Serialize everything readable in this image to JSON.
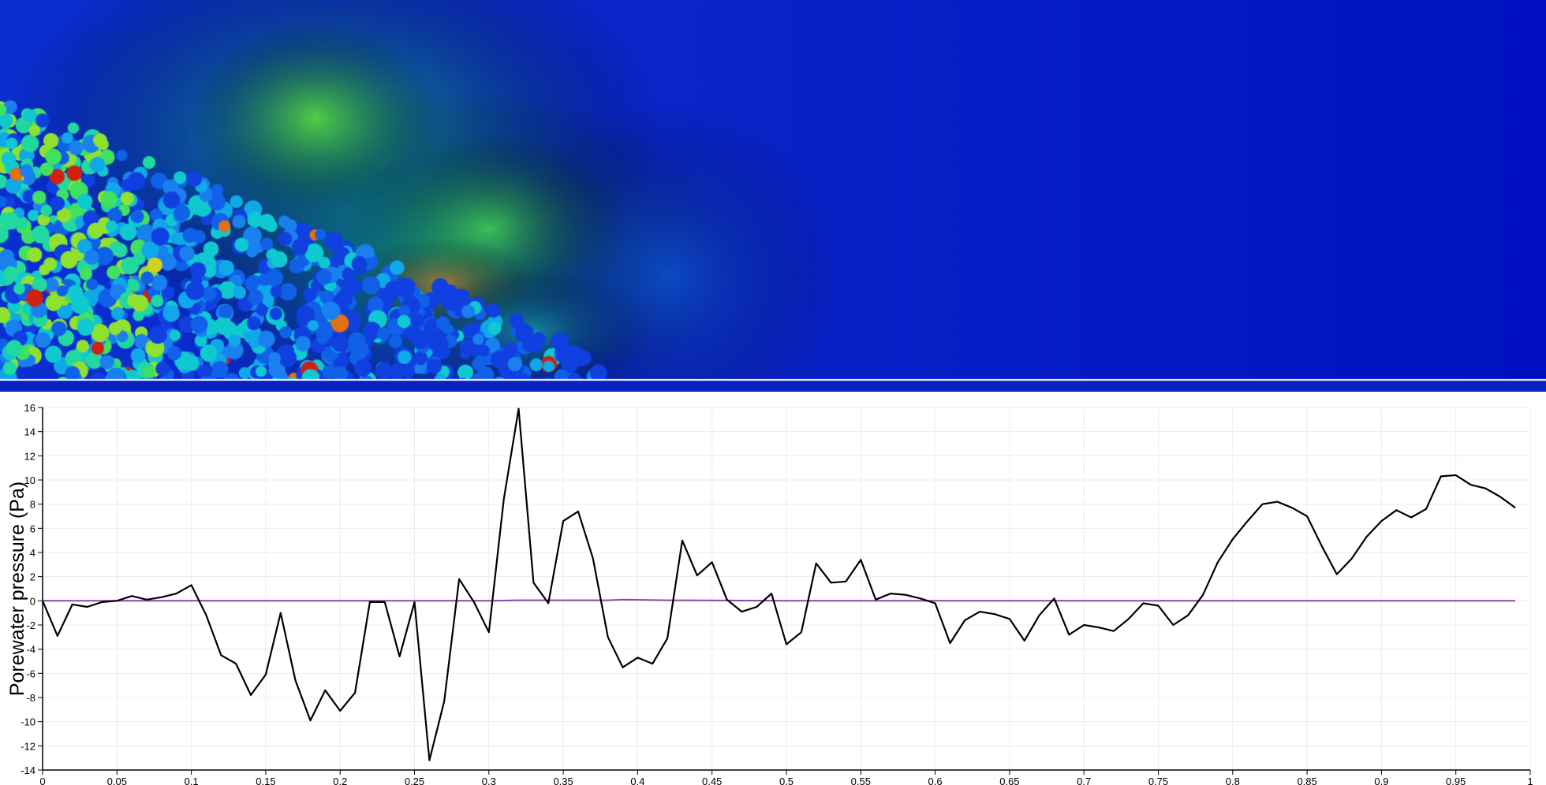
{
  "simulation": {
    "description_colormap": "jet",
    "background_color": "#0010c0"
  },
  "chart_data": {
    "type": "line",
    "title": "",
    "xlabel": "",
    "ylabel": "Porewater pressure (Pa)",
    "xlim": [
      0,
      1
    ],
    "ylim": [
      -14,
      16
    ],
    "xticks": [
      "0",
      "0.05",
      "0.1",
      "0.15",
      "0.2",
      "0.25",
      "0.3",
      "0.35",
      "0.4",
      "0.45",
      "0.5",
      "0.55",
      "0.6",
      "0.65",
      "0.7",
      "0.75",
      "0.8",
      "0.85",
      "0.9",
      "0.95",
      "1"
    ],
    "yticks": [
      "16",
      "14",
      "12",
      "10",
      "8",
      "6",
      "4",
      "2",
      "0",
      "-2",
      "-4",
      "-6",
      "-8",
      "-10",
      "-12",
      "-14"
    ],
    "grid": true,
    "series": [
      {
        "color": "#000000",
        "x": [
          0,
          0.01,
          0.02,
          0.03,
          0.04,
          0.05,
          0.06,
          0.07,
          0.08,
          0.09,
          0.1,
          0.11,
          0.12,
          0.13,
          0.14,
          0.15,
          0.16,
          0.17,
          0.18,
          0.19,
          0.2,
          0.21,
          0.22,
          0.23,
          0.24,
          0.25,
          0.26,
          0.27,
          0.28,
          0.29,
          0.3,
          0.31,
          0.32,
          0.33,
          0.34,
          0.35,
          0.36,
          0.37,
          0.38,
          0.39,
          0.4,
          0.41,
          0.42,
          0.43,
          0.44,
          0.45,
          0.46,
          0.47,
          0.48,
          0.49,
          0.5,
          0.51,
          0.52,
          0.53,
          0.54,
          0.55,
          0.56,
          0.57,
          0.58,
          0.59,
          0.6,
          0.61,
          0.62,
          0.63,
          0.64,
          0.65,
          0.66,
          0.67,
          0.68,
          0.69,
          0.7,
          0.71,
          0.72,
          0.73,
          0.74,
          0.75,
          0.76,
          0.77,
          0.78,
          0.79,
          0.8,
          0.81,
          0.82,
          0.83,
          0.84,
          0.85,
          0.86,
          0.87,
          0.88,
          0.89,
          0.9,
          0.91,
          0.92,
          0.93,
          0.94,
          0.95,
          0.96,
          0.97,
          0.98,
          0.99
        ],
        "y": [
          0,
          -2.9,
          -0.3,
          -0.5,
          -0.1,
          0,
          0.4,
          0.1,
          0.3,
          0.6,
          1.3,
          -1.2,
          -4.5,
          -5.2,
          -7.8,
          -6.1,
          -1,
          -6.6,
          -9.9,
          -7.4,
          -9.1,
          -7.6,
          -0.1,
          -0.1,
          -4.6,
          -0.1,
          -13.2,
          -8.3,
          1.8,
          -0.1,
          -2.6,
          8.4,
          15.9,
          1.5,
          -0.2,
          6.6,
          7.4,
          3.5,
          -3,
          -5.5,
          -4.7,
          -5.2,
          -3.1,
          5,
          2.1,
          3.2,
          0.1,
          -0.9,
          -0.5,
          0.6,
          -3.6,
          -2.6,
          3.1,
          1.5,
          1.6,
          3.4,
          0.1,
          0.6,
          0.5,
          0.2,
          -0.2,
          -3.5,
          -1.6,
          -0.9,
          -1.1,
          -1.5,
          -3.3,
          -1.2,
          0.2,
          -2.8,
          -2,
          -2.2,
          -2.5,
          -1.5,
          -0.2,
          -0.4,
          -2,
          -1.2,
          0.5,
          3.2,
          5.1,
          6.6,
          8,
          8.2,
          7.7,
          7,
          4.5,
          2.2,
          3.5,
          5.3,
          6.6,
          7.5,
          6.9,
          7.6,
          10.3,
          10.4,
          9.6,
          9.3,
          8.6,
          7.7
        ]
      },
      {
        "color": "#8e44ad",
        "x": [
          0,
          0.1,
          0.2,
          0.3,
          0.32,
          0.35,
          0.38,
          0.39,
          0.42,
          0.5,
          0.6,
          0.7,
          0.8,
          0.9,
          0.99
        ],
        "y": [
          0,
          0,
          0,
          0,
          0.05,
          0.05,
          0.05,
          0.1,
          0.05,
          0,
          0,
          0,
          0,
          0,
          0
        ]
      }
    ]
  }
}
